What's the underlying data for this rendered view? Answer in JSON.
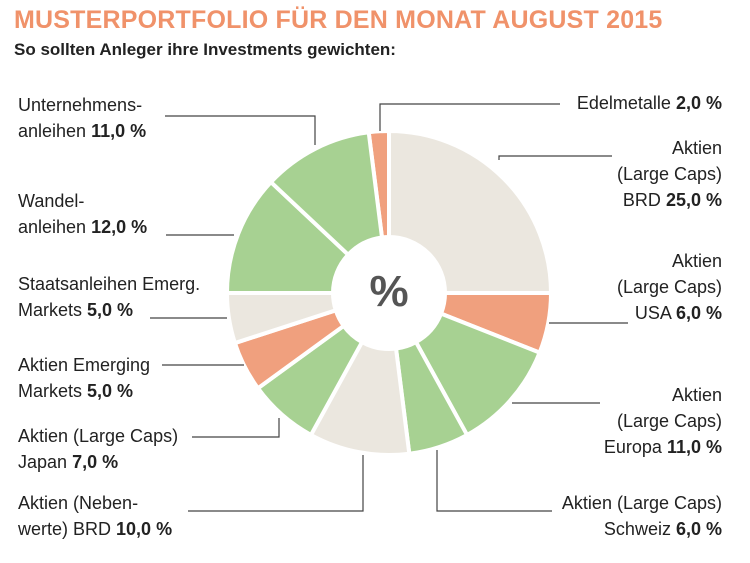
{
  "header": {
    "title": "MUSTERPORTFOLIO FÜR DEN MONAT AUGUST 2015",
    "subtitle": "So sollten Anleger ihre Investments gewichten:"
  },
  "center_label": "%",
  "colors": {
    "title": "#f0926a",
    "beige": "#ebe7df",
    "salmon": "#f0a07e",
    "green": "#a7d192",
    "leader": "#444444"
  },
  "chart_data": {
    "type": "pie",
    "title": "MUSTERPORTFOLIO FÜR DEN MONAT AUGUST 2015",
    "subtitle": "So sollten Anleger ihre Investments gewichten:",
    "unit": "%",
    "slices": [
      {
        "lines": [
          "Edelmetalle"
        ],
        "value_text": "2,0 %",
        "value": 2.0,
        "color": "salmon"
      },
      {
        "lines": [
          "Aktien",
          "(Large Caps)",
          "BRD"
        ],
        "value_text": "25,0 %",
        "value": 25.0,
        "color": "beige"
      },
      {
        "lines": [
          "Aktien",
          "(Large Caps)",
          "USA"
        ],
        "value_text": "6,0 %",
        "value": 6.0,
        "color": "salmon"
      },
      {
        "lines": [
          "Aktien",
          "(Large Caps)",
          "Europa"
        ],
        "value_text": "11,0 %",
        "value": 11.0,
        "color": "green"
      },
      {
        "lines": [
          "Aktien (Large Caps)",
          "Schweiz"
        ],
        "value_text": "6,0 %",
        "value": 6.0,
        "color": "green"
      },
      {
        "lines": [
          "Aktien (Neben-",
          "werte) BRD"
        ],
        "value_text": "10,0 %",
        "value": 10.0,
        "color": "beige"
      },
      {
        "lines": [
          "Aktien (Large Caps)",
          "Japan"
        ],
        "value_text": "7,0 %",
        "value": 7.0,
        "color": "green"
      },
      {
        "lines": [
          "Aktien Emerging",
          "Markets"
        ],
        "value_text": "5,0 %",
        "value": 5.0,
        "color": "salmon"
      },
      {
        "lines": [
          "Staatsanleihen Emerg.",
          "Markets"
        ],
        "value_text": "5,0 %",
        "value": 5.0,
        "color": "beige"
      },
      {
        "lines": [
          "Wandel-",
          "anleihen"
        ],
        "value_text": "12,0 %",
        "value": 12.0,
        "color": "green"
      },
      {
        "lines": [
          "Unternehmens-",
          "anleihen"
        ],
        "value_text": "11,0 %",
        "value": 11.0,
        "color": "green"
      }
    ]
  }
}
